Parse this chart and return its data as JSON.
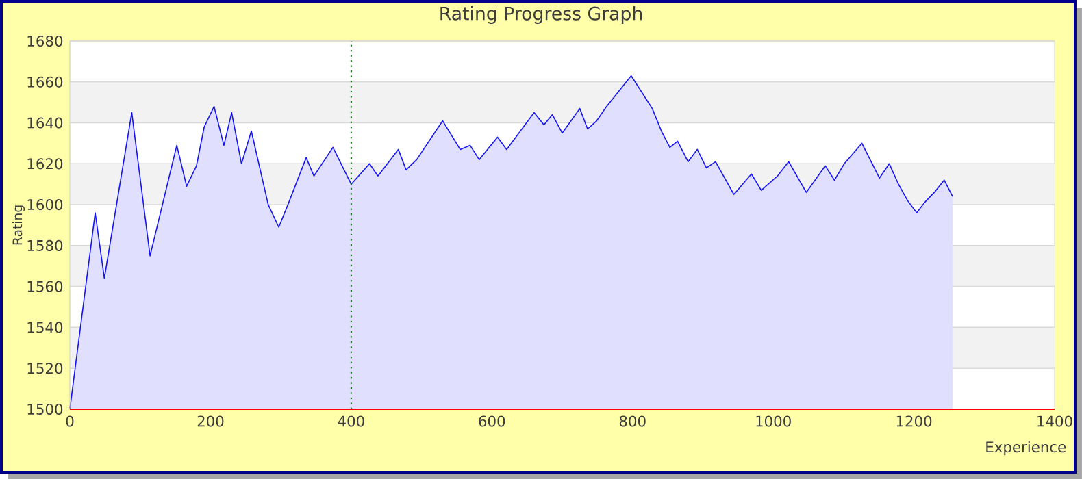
{
  "chart_data": {
    "type": "area",
    "title": "Rating Progress Graph",
    "xlabel": "Experience",
    "ylabel": "Rating",
    "x": [
      0,
      36,
      49,
      88,
      114,
      152,
      166,
      180,
      191,
      205,
      219,
      230,
      244,
      258,
      282,
      297,
      310,
      336,
      347,
      374,
      400,
      426,
      438,
      467,
      478,
      493,
      530,
      555,
      569,
      582,
      608,
      621,
      660,
      674,
      686,
      700,
      725,
      736,
      749,
      763,
      798,
      828,
      841,
      853,
      864,
      879,
      892,
      905,
      918,
      944,
      969,
      983,
      1006,
      1022,
      1047,
      1074,
      1087,
      1101,
      1126,
      1151,
      1165,
      1178,
      1191,
      1204,
      1215,
      1229,
      1243,
      1255
    ],
    "series": [
      {
        "color": "#1414f5",
        "values": [
          1500,
          1596,
          1564,
          1645,
          1575,
          1629,
          1609,
          1619,
          1638,
          1648,
          1629,
          1645,
          1620,
          1636,
          1600,
          1589,
          1600,
          1623,
          1614,
          1628,
          1610,
          1620,
          1614,
          1627,
          1617,
          1622,
          1641,
          1627,
          1629,
          1622,
          1633,
          1627,
          1645,
          1639,
          1644,
          1635,
          1647,
          1637,
          1641,
          1648,
          1663,
          1647,
          1636,
          1628,
          1631,
          1621,
          1627,
          1618,
          1621,
          1605,
          1615,
          1607,
          1614,
          1621,
          1606,
          1619,
          1612,
          1620,
          1630,
          1613,
          1620,
          1610,
          1602,
          1596,
          1601,
          1606,
          1612,
          1604
        ]
      }
    ],
    "xlim": [
      0,
      1400
    ],
    "ylim": [
      1500,
      1680
    ],
    "xticks": [
      0,
      200,
      400,
      600,
      800,
      1000,
      1200,
      1400
    ],
    "yticks": [
      1500,
      1520,
      1540,
      1560,
      1580,
      1600,
      1620,
      1640,
      1660,
      1680
    ],
    "grid": "y",
    "ref_lines": [
      {
        "axis": "x",
        "value": 400,
        "color": "#007700",
        "line_style": "dotted"
      }
    ],
    "bands": [
      {
        "axis": "y",
        "from": 1660,
        "to": 1640,
        "color": "#f2f2f2"
      },
      {
        "axis": "y",
        "from": 1620,
        "to": 1600,
        "color": "#f2f2f2"
      },
      {
        "axis": "y",
        "from": 1580,
        "to": 1560,
        "color": "#f2f2f2"
      },
      {
        "axis": "y",
        "from": 1540,
        "to": 1520,
        "color": "#f2f2f2"
      }
    ]
  }
}
